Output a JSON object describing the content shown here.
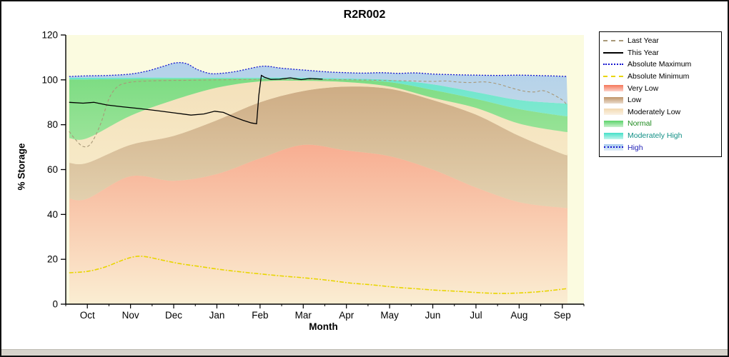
{
  "chart_data": {
    "type": "area",
    "title": "R2R002",
    "xlabel": "Month",
    "ylabel": "% Storage",
    "ylim": [
      0,
      120
    ],
    "y_ticks": [
      0,
      20,
      40,
      60,
      80,
      100,
      120
    ],
    "categories": [
      "Oct",
      "Nov",
      "Dec",
      "Jan",
      "Feb",
      "Mar",
      "Apr",
      "May",
      "Jun",
      "Jul",
      "Aug",
      "Sep"
    ],
    "plot_bg": "#FBFBE0",
    "bands": [
      {
        "name": "Very Low",
        "color": "#F5775A",
        "top": [
          47,
          57,
          55,
          58,
          65,
          71,
          68.5,
          66,
          60,
          52,
          45.5,
          43
        ]
      },
      {
        "name": "Low",
        "color": "#C09468",
        "top": [
          63,
          71,
          75,
          82,
          90,
          95,
          97,
          96,
          91,
          84.5,
          75,
          67
        ]
      },
      {
        "name": "Moderately Low",
        "color": "#F2D9B0",
        "top": [
          74,
          84,
          91,
          96.5,
          99.3,
          99.6,
          99,
          97,
          92,
          87.5,
          80.5,
          77
        ]
      },
      {
        "name": "Normal",
        "color": "#5BD46A",
        "top": [
          100.2,
          100.4,
          100.5,
          100.5,
          100.5,
          100.4,
          100.1,
          99,
          95.5,
          91.5,
          87,
          84
        ]
      },
      {
        "name": "Moderately High",
        "color": "#45E0C8",
        "top": [
          100.9,
          101,
          101,
          101,
          101,
          101,
          100.6,
          100,
          98,
          94.5,
          91,
          89.5
        ]
      },
      {
        "name": "High",
        "color": "#A4C8EC",
        "top_ref": "Absolute Maximum"
      }
    ],
    "lines": [
      {
        "name": "Absolute Minimum",
        "color": "#E8D500",
        "dash": "6 2 2 2",
        "width": 1.6,
        "smooth": true,
        "x": [
          -0.42,
          0,
          0.4,
          0.8,
          1.05,
          1.3,
          1.7,
          2.1,
          2.6,
          3.1,
          3.6,
          4.1,
          4.6,
          5.1,
          5.6,
          6.1,
          6.6,
          7.1,
          7.6,
          8.1,
          8.6,
          9.1,
          9.5,
          9.9,
          10.3,
          10.7,
          11,
          11.1
        ],
        "y": [
          14,
          14.6,
          16.5,
          19.5,
          21,
          21.3,
          19.8,
          18.2,
          16.8,
          15.4,
          14.3,
          13.3,
          12.4,
          11.6,
          10.6,
          9.4,
          8.6,
          7.6,
          6.9,
          6.2,
          5.7,
          5.1,
          4.8,
          4.9,
          5.3,
          6,
          6.7,
          6.9
        ]
      },
      {
        "name": "Last Year",
        "color": "#A89878",
        "dash": "4 3",
        "width": 1.1,
        "smooth": true,
        "x": [
          -0.42,
          -0.28,
          -0.1,
          0.08,
          0.3,
          0.5,
          0.7,
          0.95,
          1.3,
          1.8,
          2.3,
          3,
          4,
          5,
          5.8,
          6.5,
          7,
          7.5,
          8,
          8.3,
          8.6,
          8.9,
          9.2,
          9.5,
          9.8,
          10.1,
          10.35,
          10.55,
          10.75,
          11,
          11.1
        ],
        "y": [
          77,
          73.5,
          70.3,
          71.5,
          80,
          91.5,
          97,
          98.8,
          99.4,
          99.7,
          99.8,
          100,
          100.2,
          100.2,
          100.1,
          99.9,
          99.7,
          99.5,
          99.3,
          99.5,
          99,
          98.8,
          99.1,
          98.2,
          96.5,
          95,
          94.6,
          95.2,
          93.8,
          91,
          89
        ]
      },
      {
        "name": "Absolute Maximum",
        "color": "#1515D0",
        "dash": "2 2",
        "width": 1.3,
        "smooth": true,
        "x": [
          -0.42,
          0,
          0.5,
          1,
          1.4,
          1.75,
          2.05,
          2.3,
          2.55,
          2.85,
          3.1,
          3.4,
          3.7,
          3.95,
          4.15,
          4.45,
          4.8,
          5.2,
          5.6,
          6,
          6.4,
          6.8,
          7.2,
          7.6,
          8,
          8.5,
          9,
          9.5,
          10,
          10.5,
          11,
          11.1
        ],
        "y": [
          101.5,
          101.8,
          102,
          102.6,
          104,
          106,
          107.6,
          107.2,
          104.6,
          102.8,
          102.9,
          103.6,
          104.8,
          105.8,
          106.1,
          105.3,
          104.7,
          104.1,
          103.5,
          103.2,
          103,
          103.2,
          102.9,
          103.1,
          102.6,
          102.3,
          102.1,
          102,
          102.1,
          101.9,
          101.6,
          101.5
        ]
      },
      {
        "name": "This Year",
        "color": "#000000",
        "dash": "",
        "width": 1.3,
        "smooth": false,
        "x": [
          -0.42,
          -0.1,
          0.15,
          0.45,
          0.8,
          1.2,
          1.6,
          2,
          2.4,
          2.7,
          2.95,
          3.15,
          3.35,
          3.6,
          3.8,
          3.92,
          3.97,
          4.03,
          4.1,
          4.25,
          4.45,
          4.7,
          4.95,
          5.15,
          5.45
        ],
        "y": [
          90,
          89.6,
          90,
          88.8,
          88,
          87.2,
          86.3,
          85.3,
          84.3,
          84.8,
          86,
          85.5,
          83.8,
          82,
          80.8,
          80.4,
          93,
          102,
          101.2,
          100.2,
          100.3,
          100.9,
          100.1,
          100.6,
          100.3
        ]
      }
    ]
  },
  "legend": {
    "items": [
      {
        "label": "Last Year",
        "sample": "line",
        "color": "#A89878",
        "line_style": "dashed",
        "label_color": "#000000"
      },
      {
        "label": "This Year",
        "sample": "line",
        "color": "#000000",
        "line_style": "solid",
        "label_color": "#000000"
      },
      {
        "label": "Absolute Maximum",
        "sample": "line",
        "color": "#1515D0",
        "line_style": "dotted",
        "label_color": "#000000"
      },
      {
        "label": "Absolute Minimum",
        "sample": "line",
        "color": "#E8D500",
        "line_style": "dashed",
        "label_color": "#000000"
      },
      {
        "label": "Very Low",
        "sample": "swatch",
        "color": "#F5775A",
        "label_color": "#000000"
      },
      {
        "label": "Low",
        "sample": "swatch",
        "color": "#C09468",
        "label_color": "#000000"
      },
      {
        "label": "Moderately Low",
        "sample": "swatch",
        "color": "#F2D9B0",
        "label_color": "#000000"
      },
      {
        "label": "Normal",
        "sample": "swatch",
        "color": "#5BD46A",
        "label_color": "#1E8A1E"
      },
      {
        "label": "Moderately High",
        "sample": "swatch",
        "color": "#45E0C8",
        "label_color": "#108F85"
      },
      {
        "label": "High",
        "sample": "swatch-line",
        "color": "#A4C8EC",
        "line_color": "#1515D0",
        "label_color": "#2222B8"
      }
    ]
  }
}
